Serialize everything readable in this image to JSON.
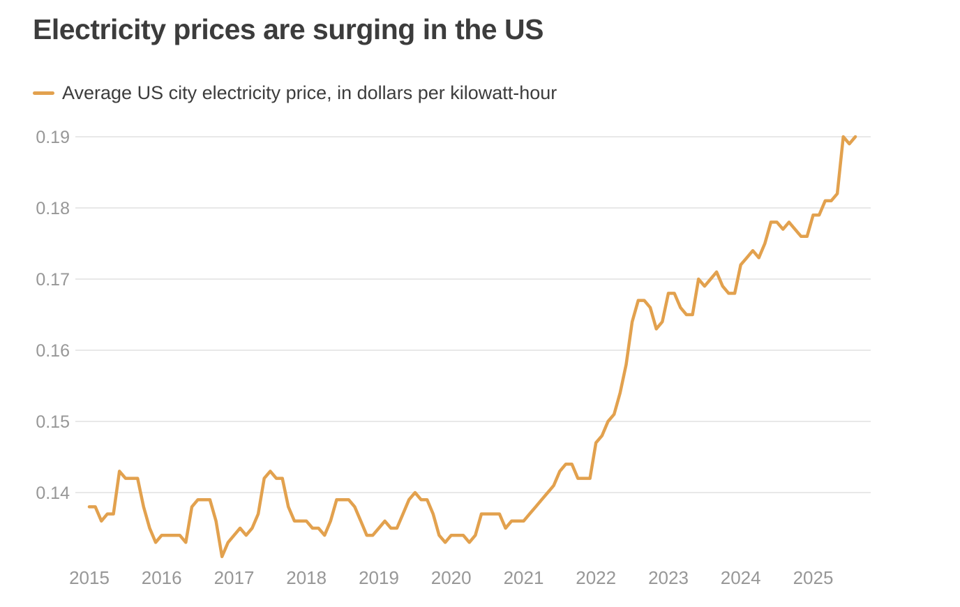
{
  "title": "Electricity prices are surging in the US",
  "legend": {
    "label": "Average US city electricity price, in dollars per kilowatt-hour"
  },
  "colors": {
    "line": "#e2a14e",
    "title_text": "#3c3c3c",
    "legend_text": "#3c3c3c",
    "axis_text": "#979797",
    "gridline": "#e0e0e0",
    "background": "#ffffff"
  },
  "chart_data": {
    "type": "line",
    "title": "Electricity prices are surging in the US",
    "xlabel": "",
    "ylabel": "",
    "grid": "horizontal-only",
    "legend_position": "top-left",
    "x_tick_labels": [
      "2015",
      "2016",
      "2017",
      "2018",
      "2019",
      "2020",
      "2021",
      "2022",
      "2023",
      "2024",
      "2025"
    ],
    "y_ticks": [
      0.14,
      0.15,
      0.16,
      0.17,
      0.18,
      0.19
    ],
    "y_tick_labels": [
      "0.14",
      "0.15",
      "0.16",
      "0.17",
      "0.18",
      "0.19"
    ],
    "ylim": [
      0.1295,
      0.1915
    ],
    "series": [
      {
        "name": "Average US city electricity price, in dollars per kilowatt-hour",
        "unit": "dollars per kilowatt-hour",
        "frequency": "monthly",
        "start": "2015-01",
        "end": "2025-08",
        "values": [
          0.138,
          0.138,
          0.136,
          0.137,
          0.137,
          0.143,
          0.142,
          0.142,
          0.142,
          0.138,
          0.135,
          0.133,
          0.134,
          0.134,
          0.134,
          0.134,
          0.133,
          0.138,
          0.139,
          0.139,
          0.139,
          0.136,
          0.131,
          0.133,
          0.134,
          0.135,
          0.134,
          0.135,
          0.137,
          0.142,
          0.143,
          0.142,
          0.142,
          0.138,
          0.136,
          0.136,
          0.136,
          0.135,
          0.135,
          0.134,
          0.136,
          0.139,
          0.139,
          0.139,
          0.138,
          0.136,
          0.134,
          0.134,
          0.135,
          0.136,
          0.135,
          0.135,
          0.137,
          0.139,
          0.14,
          0.139,
          0.139,
          0.137,
          0.134,
          0.133,
          0.134,
          0.134,
          0.134,
          0.133,
          0.134,
          0.137,
          0.137,
          0.137,
          0.137,
          0.135,
          0.136,
          0.136,
          0.136,
          0.137,
          0.138,
          0.139,
          0.14,
          0.141,
          0.143,
          0.144,
          0.144,
          0.142,
          0.142,
          0.142,
          0.147,
          0.148,
          0.15,
          0.151,
          0.154,
          0.158,
          0.164,
          0.167,
          0.167,
          0.166,
          0.163,
          0.164,
          0.168,
          0.168,
          0.166,
          0.165,
          0.165,
          0.17,
          0.169,
          0.17,
          0.171,
          0.169,
          0.168,
          0.168,
          0.172,
          0.173,
          0.174,
          0.173,
          0.175,
          0.178,
          0.178,
          0.177,
          0.178,
          0.177,
          0.176,
          0.176,
          0.179,
          0.179,
          0.181,
          0.181,
          0.182,
          0.19,
          0.189,
          0.19
        ]
      }
    ]
  }
}
